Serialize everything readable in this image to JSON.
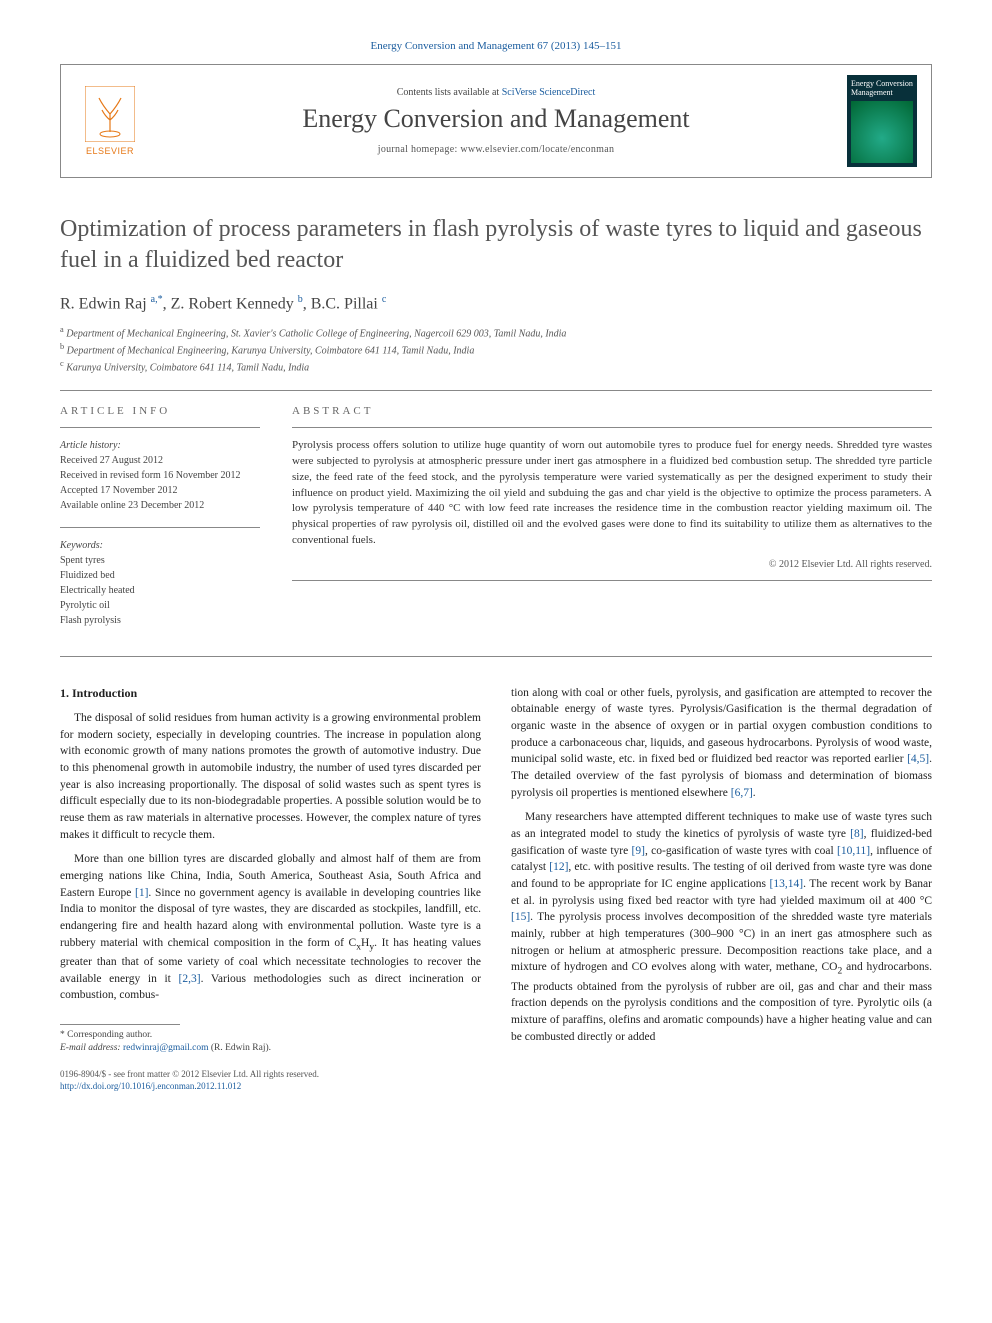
{
  "header": {
    "running": "Energy Conversion and Management 67 (2013) 145–151",
    "contents_prefix": "Contents lists available at ",
    "contents_link": "SciVerse ScienceDirect",
    "journal_name": "Energy Conversion and Management",
    "homepage_prefix": "journal homepage: ",
    "homepage": "www.elsevier.com/locate/enconman",
    "publisher": "ELSEVIER",
    "cover_title": "Energy Conversion Management"
  },
  "title": "Optimization of process parameters in flash pyrolysis of waste tyres to liquid and gaseous fuel in a fluidized bed reactor",
  "authors_html": "R. Edwin Raj <sup>a,*</sup>, Z. Robert Kennedy <sup>b</sup>, B.C. Pillai <sup>c</sup>",
  "affiliations": {
    "a": "Department of Mechanical Engineering, St. Xavier's Catholic College of Engineering, Nagercoil 629 003, Tamil Nadu, India",
    "b": "Department of Mechanical Engineering, Karunya University, Coimbatore 641 114, Tamil Nadu, India",
    "c": "Karunya University, Coimbatore 641 114, Tamil Nadu, India"
  },
  "article_info": {
    "heading": "ARTICLE INFO",
    "history_lbl": "Article history:",
    "history": [
      "Received 27 August 2012",
      "Received in revised form 16 November 2012",
      "Accepted 17 November 2012",
      "Available online 23 December 2012"
    ],
    "keywords_lbl": "Keywords:",
    "keywords": [
      "Spent tyres",
      "Fluidized bed",
      "Electrically heated",
      "Pyrolytic oil",
      "Flash pyrolysis"
    ]
  },
  "abstract": {
    "heading": "ABSTRACT",
    "text": "Pyrolysis process offers solution to utilize huge quantity of worn out automobile tyres to produce fuel for energy needs. Shredded tyre wastes were subjected to pyrolysis at atmospheric pressure under inert gas atmosphere in a fluidized bed combustion setup. The shredded tyre particle size, the feed rate of the feed stock, and the pyrolysis temperature were varied systematically as per the designed experiment to study their influence on product yield. Maximizing the oil yield and subduing the gas and char yield is the objective to optimize the process parameters. A low pyrolysis temperature of 440 °C with low feed rate increases the residence time in the combustion reactor yielding maximum oil. The physical properties of raw pyrolysis oil, distilled oil and the evolved gases were done to find its suitability to utilize them as alternatives to the conventional fuels.",
    "copyright": "© 2012 Elsevier Ltd. All rights reserved."
  },
  "sections": {
    "intro_heading": "1. Introduction",
    "col1": [
      "The disposal of solid residues from human activity is a growing environmental problem for modern society, especially in developing countries. The increase in population along with economic growth of many nations promotes the growth of automotive industry. Due to this phenomenal growth in automobile industry, the number of used tyres discarded per year is also increasing proportionally. The disposal of solid wastes such as spent tyres is difficult especially due to its non-biodegradable properties. A possible solution would be to reuse them as raw materials in alternative processes. However, the complex nature of tyres makes it difficult to recycle them.",
      "More than one billion tyres are discarded globally and almost half of them are from emerging nations like China, India, South America, Southeast Asia, South Africa and Eastern Europe [1]. Since no government agency is available in developing countries like India to monitor the disposal of tyre wastes, they are discarded as stockpiles, landfill, etc. endangering fire and health hazard along with environmental pollution. Waste tyre is a rubbery material with chemical composition in the form of CxHy. It has heating values greater than that of some variety of coal which necessitate technologies to recover the available energy in it [2,3]. Various methodologies such as direct incineration or combustion, combus-"
    ],
    "col2": [
      "tion along with coal or other fuels, pyrolysis, and gasification are attempted to recover the obtainable energy of waste tyres. Pyrolysis/Gasification is the thermal degradation of organic waste in the absence of oxygen or in partial oxygen combustion conditions to produce a carbonaceous char, liquids, and gaseous hydrocarbons. Pyrolysis of wood waste, municipal solid waste, etc. in fixed bed or fluidized bed reactor was reported earlier [4,5]. The detailed overview of the fast pyrolysis of biomass and determination of biomass pyrolysis oil properties is mentioned elsewhere [6,7].",
      "Many researchers have attempted different techniques to make use of waste tyres such as an integrated model to study the kinetics of pyrolysis of waste tyre [8], fluidized-bed gasification of waste tyre [9], co-gasification of waste tyres with coal [10,11], influence of catalyst [12], etc. with positive results. The testing of oil derived from waste tyre was done and found to be appropriate for IC engine applications [13,14]. The recent work by Banar et al. in pyrolysis using fixed bed reactor with tyre had yielded maximum oil at 400 °C [15]. The pyrolysis process involves decomposition of the shredded waste tyre materials mainly, rubber at high temperatures (300–900 °C) in an inert gas atmosphere such as nitrogen or helium at atmospheric pressure. Decomposition reactions take place, and a mixture of hydrogen and CO evolves along with water, methane, CO2 and hydrocarbons. The products obtained from the pyrolysis of rubber are oil, gas and char and their mass fraction depends on the pyrolysis conditions and the composition of tyre. Pyrolytic oils (a mixture of paraffins, olefins and aromatic compounds) have a higher heating value and can be combusted directly or added"
    ]
  },
  "corresponding": {
    "star": "* Corresponding author.",
    "email_lbl": "E-mail address: ",
    "email": "redwinraj@gmail.com",
    "email_whom": " (R. Edwin Raj)."
  },
  "bottom": {
    "line1": "0196-8904/$ - see front matter © 2012 Elsevier Ltd. All rights reserved.",
    "line2": "http://dx.doi.org/10.1016/j.enconman.2012.11.012"
  },
  "colors": {
    "link": "#1a5c9e",
    "text": "#222222",
    "muted": "#555555",
    "rule": "#888888",
    "orange": "#e67817"
  }
}
